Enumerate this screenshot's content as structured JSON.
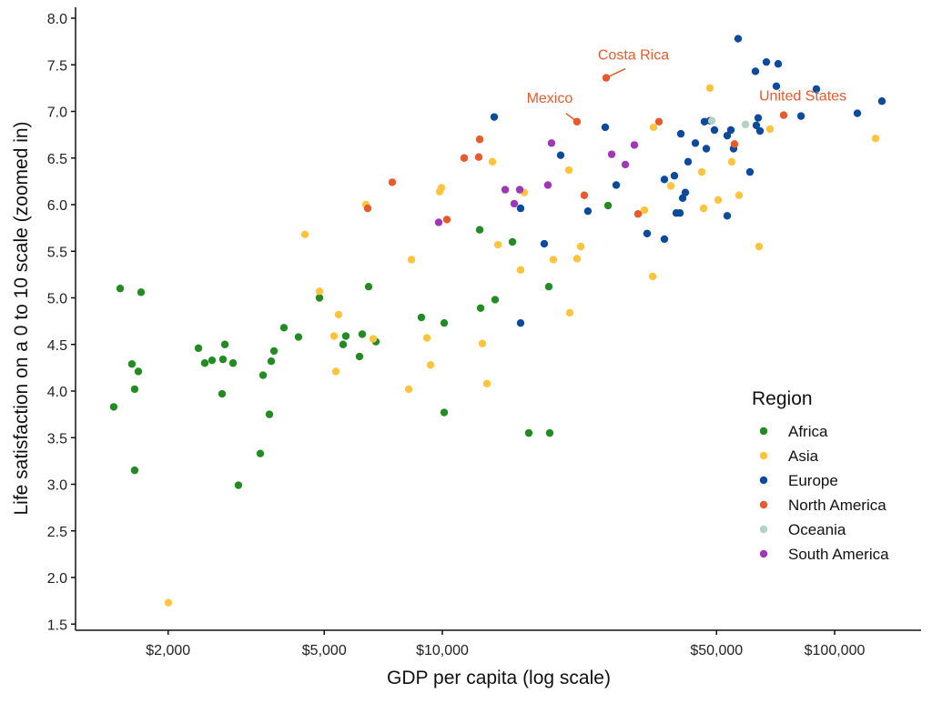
{
  "chart_data": {
    "type": "scatter",
    "title": "",
    "xlabel": "GDP per capita (log scale)",
    "ylabel": "Life satisfaction on a 0 to 10 scale (zoomed in)",
    "x_scale": "log",
    "xlim": [
      1250,
      180000
    ],
    "ylim": [
      1.4,
      8.1
    ],
    "x_ticks": [
      2000,
      5000,
      10000,
      50000,
      100000
    ],
    "x_tick_labels": [
      "$2,000",
      "$5,000",
      "$10,000",
      "$50,000",
      "$100,000"
    ],
    "y_ticks": [
      1.5,
      2.0,
      2.5,
      3.0,
      3.5,
      4.0,
      4.5,
      5.0,
      5.5,
      6.0,
      6.5,
      7.0,
      7.5,
      8.0
    ],
    "y_tick_labels": [
      "1.5",
      "2.0",
      "2.5",
      "3.0",
      "3.5",
      "4.0",
      "4.5",
      "5.0",
      "5.5",
      "6.0",
      "6.5",
      "7.0",
      "7.5",
      "8.0"
    ],
    "grid": false,
    "legend": {
      "title": "Region",
      "position": "right"
    },
    "series": [
      {
        "name": "Africa",
        "color": "#228b22",
        "points": [
          [
            1453,
            3.83
          ],
          [
            1509,
            5.1
          ],
          [
            1706,
            5.06
          ],
          [
            1617,
            4.29
          ],
          [
            1679,
            4.21
          ],
          [
            1643,
            4.02
          ],
          [
            1643,
            3.15
          ],
          [
            2389,
            4.46
          ],
          [
            2480,
            4.3
          ],
          [
            2588,
            4.33
          ],
          [
            2790,
            4.5
          ],
          [
            2759,
            4.34
          ],
          [
            2927,
            4.3
          ],
          [
            2745,
            3.97
          ],
          [
            3021,
            2.99
          ],
          [
            3435,
            3.33
          ],
          [
            3624,
            3.75
          ],
          [
            3491,
            4.17
          ],
          [
            3663,
            4.32
          ],
          [
            3723,
            4.43
          ],
          [
            3947,
            4.68
          ],
          [
            4298,
            4.58
          ],
          [
            4861,
            5.0
          ],
          [
            5675,
            4.59
          ],
          [
            5585,
            4.5
          ],
          [
            6248,
            4.61
          ],
          [
            6149,
            4.37
          ],
          [
            6487,
            5.12
          ],
          [
            6769,
            4.53
          ],
          [
            12450,
            5.73
          ],
          [
            15090,
            5.6
          ],
          [
            13630,
            4.98
          ],
          [
            18680,
            5.12
          ],
          [
            12520,
            4.89
          ],
          [
            8843,
            4.79
          ],
          [
            10110,
            4.73
          ],
          [
            10110,
            3.77
          ],
          [
            16610,
            3.55
          ],
          [
            18780,
            3.55
          ],
          [
            26450,
            5.99
          ]
        ]
      },
      {
        "name": "Asia",
        "color": "#ffc33d",
        "points": [
          [
            2002,
            1.73
          ],
          [
            4463,
            5.68
          ],
          [
            4861,
            5.07
          ],
          [
            5438,
            4.82
          ],
          [
            5295,
            4.59
          ],
          [
            5352,
            4.21
          ],
          [
            6663,
            4.56
          ],
          [
            6385,
            6.0
          ],
          [
            8340,
            5.41
          ],
          [
            9132,
            4.57
          ],
          [
            9329,
            4.28
          ],
          [
            8208,
            4.02
          ],
          [
            9947,
            6.18
          ],
          [
            9841,
            6.14
          ],
          [
            13420,
            6.46
          ],
          [
            16180,
            6.13
          ],
          [
            13860,
            5.57
          ],
          [
            15830,
            5.3
          ],
          [
            12650,
            4.51
          ],
          [
            12990,
            4.08
          ],
          [
            21010,
            6.37
          ],
          [
            19190,
            5.41
          ],
          [
            22040,
            5.42
          ],
          [
            22530,
            5.55
          ],
          [
            21130,
            4.84
          ],
          [
            48090,
            7.25
          ],
          [
            34540,
            6.83
          ],
          [
            68440,
            6.81
          ],
          [
            127200,
            6.71
          ],
          [
            54670,
            6.46
          ],
          [
            45840,
            6.35
          ],
          [
            38230,
            6.2
          ],
          [
            57070,
            6.1
          ],
          [
            50470,
            6.05
          ],
          [
            46330,
            5.96
          ],
          [
            32740,
            5.94
          ],
          [
            64190,
            5.55
          ],
          [
            34360,
            5.23
          ]
        ]
      },
      {
        "name": "Europe",
        "color": "#0b4a9c",
        "points": [
          [
            56760,
            7.78
          ],
          [
            66990,
            7.53
          ],
          [
            71800,
            7.51
          ],
          [
            62830,
            7.43
          ],
          [
            71040,
            7.27
          ],
          [
            89860,
            7.24
          ],
          [
            132000,
            7.11
          ],
          [
            114300,
            6.98
          ],
          [
            82100,
            6.95
          ],
          [
            63850,
            6.93
          ],
          [
            63170,
            6.85
          ],
          [
            64530,
            6.79
          ],
          [
            46580,
            6.89
          ],
          [
            48090,
            6.9
          ],
          [
            49390,
            6.8
          ],
          [
            54380,
            6.8
          ],
          [
            53240,
            6.74
          ],
          [
            55260,
            6.6
          ],
          [
            26020,
            6.83
          ],
          [
            13560,
            6.94
          ],
          [
            40550,
            6.76
          ],
          [
            44160,
            6.66
          ],
          [
            47100,
            6.6
          ],
          [
            42310,
            6.46
          ],
          [
            20030,
            6.53
          ],
          [
            27750,
            6.21
          ],
          [
            60840,
            6.35
          ],
          [
            36820,
            6.27
          ],
          [
            39050,
            6.31
          ],
          [
            41640,
            6.13
          ],
          [
            40990,
            6.07
          ],
          [
            39480,
            5.91
          ],
          [
            40320,
            5.91
          ],
          [
            53240,
            5.88
          ],
          [
            23500,
            5.93
          ],
          [
            33270,
            5.69
          ],
          [
            36820,
            5.63
          ],
          [
            18190,
            5.58
          ],
          [
            15830,
            5.96
          ],
          [
            15830,
            4.73
          ]
        ]
      },
      {
        "name": "North America",
        "color": "#e85a2c",
        "points": [
          [
            26160,
            7.36
          ],
          [
            22040,
            6.89
          ],
          [
            74150,
            6.96
          ],
          [
            35660,
            6.89
          ],
          [
            55560,
            6.65
          ],
          [
            23010,
            6.1
          ],
          [
            31540,
            5.9
          ],
          [
            12450,
            6.7
          ],
          [
            11370,
            6.5
          ],
          [
            12380,
            6.51
          ],
          [
            7452,
            6.24
          ],
          [
            6453,
            5.96
          ],
          [
            10270,
            5.84
          ]
        ]
      },
      {
        "name": "Oceania",
        "color": "#b3d3c2",
        "points": [
          [
            59260,
            6.86
          ],
          [
            48630,
            6.9
          ]
        ]
      },
      {
        "name": "South America",
        "color": "#a136b8",
        "points": [
          [
            18980,
            6.66
          ],
          [
            14460,
            6.16
          ],
          [
            15750,
            6.16
          ],
          [
            15250,
            6.01
          ],
          [
            18580,
            6.21
          ],
          [
            9788,
            5.81
          ],
          [
            30870,
            6.64
          ],
          [
            27020,
            6.54
          ],
          [
            29270,
            6.43
          ]
        ]
      }
    ],
    "annotations": [
      {
        "text": "Costa Rica",
        "gdp": 26160,
        "ls": 7.36,
        "color": "#e85a2c"
      },
      {
        "text": "Mexico",
        "gdp": 22040,
        "ls": 6.89,
        "color": "#e85a2c"
      },
      {
        "text": "United States",
        "gdp": 74150,
        "ls": 6.96,
        "color": "#e85a2c"
      }
    ]
  }
}
